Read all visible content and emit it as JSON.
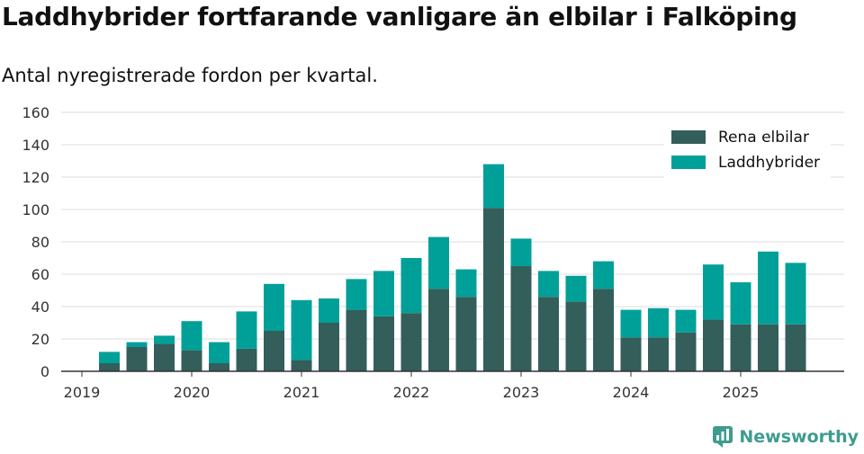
{
  "title": "Laddhybrider fortfarande vanligare än elbilar i Falköping",
  "subtitle": "Antal nyregistrerade fordon per kvartal.",
  "brand": {
    "name": "Newsworthy",
    "icon": "newsworthy-logo-icon"
  },
  "colors": {
    "elbilar": "#335e5a",
    "laddhybrider": "#00a099",
    "grid": "#dddddd",
    "axis": "#333333",
    "text": "#333333"
  },
  "chart_data": {
    "type": "bar",
    "stacked": true,
    "title": "Laddhybrider fortfarande vanligare än elbilar i Falköping",
    "subtitle": "Antal nyregistrerade fordon per kvartal.",
    "xlabel": "",
    "ylabel": "",
    "ylim": [
      0,
      160
    ],
    "yticks": [
      0,
      20,
      40,
      60,
      80,
      100,
      120,
      140,
      160
    ],
    "xlim": [
      2019.0,
      2026.0
    ],
    "xticks": [
      "2019",
      "2020",
      "2021",
      "2022",
      "2023",
      "2024",
      "2025"
    ],
    "legend_position": "top-right",
    "grid": true,
    "x": [
      2019.25,
      2019.5,
      2019.75,
      2020.0,
      2020.25,
      2020.5,
      2020.75,
      2021.0,
      2021.25,
      2021.5,
      2021.75,
      2022.0,
      2022.25,
      2022.5,
      2022.75,
      2023.0,
      2023.25,
      2023.5,
      2023.75,
      2024.0,
      2024.25,
      2024.5,
      2024.75,
      2025.0,
      2025.25,
      2025.5
    ],
    "series": [
      {
        "name": "Rena elbilar",
        "values": [
          5,
          15,
          17,
          13,
          5,
          14,
          25,
          7,
          30,
          38,
          34,
          36,
          51,
          46,
          101,
          65,
          46,
          43,
          51,
          21,
          21,
          24,
          32,
          29,
          29,
          29
        ]
      },
      {
        "name": "Laddhybrider",
        "values": [
          7,
          3,
          5,
          18,
          13,
          23,
          29,
          37,
          15,
          19,
          28,
          34,
          32,
          17,
          27,
          17,
          16,
          16,
          17,
          17,
          18,
          14,
          34,
          26,
          45,
          38
        ]
      }
    ]
  }
}
